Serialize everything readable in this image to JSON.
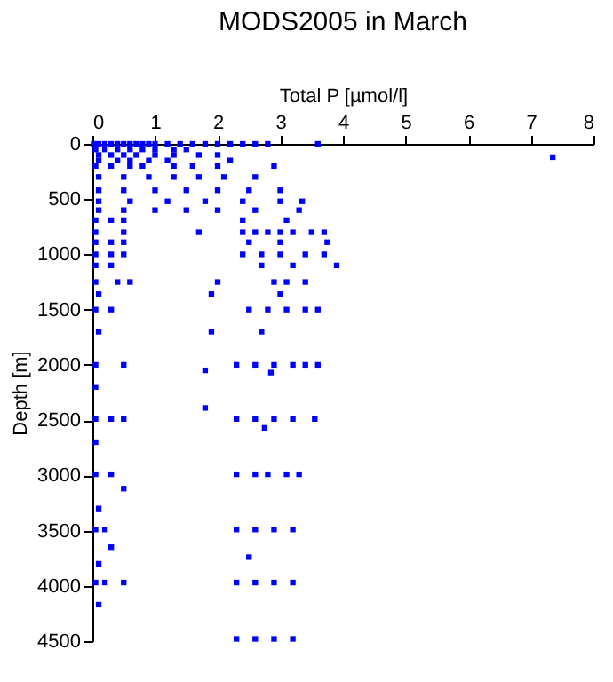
{
  "chart_data": {
    "type": "scatter",
    "title": "MODS2005 in March",
    "xlabel": "Total P [µmol/l]",
    "ylabel": "Depth [m]",
    "xlim": [
      0,
      8
    ],
    "xticks": [
      0,
      1,
      2,
      3,
      4,
      5,
      6,
      7,
      8
    ],
    "ylim": [
      4500,
      0
    ],
    "yticks": [
      0,
      500,
      1000,
      1500,
      2000,
      2500,
      3000,
      3500,
      4000,
      4500
    ],
    "grid": false,
    "legend": false,
    "marker": "square",
    "series": [
      {
        "color": "#0000ff",
        "x": [
          0.02,
          0.1,
          0.2,
          0.3,
          0.4,
          0.5,
          0.6,
          0.7,
          0.8,
          0.9,
          1.0,
          1.2,
          1.4,
          1.6,
          1.8,
          2.0,
          2.2,
          2.4,
          2.6,
          2.8,
          3.6,
          0.05,
          0.2,
          0.4,
          0.6,
          0.8,
          1.0,
          1.3,
          1.5,
          0.1,
          0.3,
          0.5,
          0.7,
          1.0,
          1.3,
          1.7,
          2.0,
          7.35,
          0.1,
          0.4,
          0.6,
          0.9,
          1.2,
          2.2,
          0.05,
          0.3,
          0.6,
          0.8,
          1.3,
          1.6,
          2.0,
          2.9,
          0.1,
          0.5,
          0.9,
          1.3,
          1.7,
          2.1,
          2.6,
          0.1,
          0.5,
          1.0,
          1.5,
          2.0,
          2.5,
          3.0,
          0.1,
          0.6,
          1.2,
          1.8,
          2.4,
          3.0,
          3.35,
          0.1,
          0.5,
          1.0,
          1.5,
          2.0,
          2.6,
          3.3,
          0.05,
          0.3,
          0.5,
          2.4,
          3.1,
          0.05,
          0.5,
          1.7,
          2.4,
          2.6,
          2.8,
          3.0,
          3.2,
          3.5,
          3.7,
          0.05,
          0.3,
          0.5,
          2.5,
          3.0,
          3.75,
          0.05,
          0.3,
          0.5,
          2.4,
          2.7,
          3.0,
          3.4,
          3.7,
          0.05,
          0.3,
          2.7,
          3.2,
          3.9,
          0.05,
          0.4,
          0.6,
          2.0,
          2.9,
          3.1,
          3.4,
          0.1,
          1.9,
          3.0,
          0.05,
          0.3,
          2.5,
          2.8,
          3.1,
          3.4,
          3.6,
          0.1,
          1.9,
          2.7,
          0.05,
          0.5,
          2.3,
          2.6,
          2.9,
          3.2,
          3.4,
          3.6,
          2.85,
          1.8,
          1.8,
          0.05,
          0.05,
          0.3,
          0.5,
          2.3,
          2.6,
          2.9,
          3.2,
          3.55,
          2.75,
          0.05,
          0.05,
          0.3,
          2.3,
          2.6,
          2.8,
          3.1,
          3.3,
          0.5,
          0.1,
          0.05,
          0.2,
          2.3,
          2.6,
          2.9,
          3.2,
          0.3,
          2.5,
          0.1,
          0.05,
          0.2,
          0.5,
          2.3,
          2.6,
          2.9,
          3.2,
          0.1,
          2.3,
          2.6,
          2.9,
          3.2
        ],
        "values": [
          0,
          0,
          0,
          0,
          0,
          0,
          0,
          0,
          0,
          0,
          0,
          0,
          0,
          0,
          0,
          0,
          0,
          0,
          0,
          0,
          0,
          50,
          50,
          50,
          50,
          50,
          50,
          50,
          50,
          100,
          100,
          100,
          100,
          100,
          100,
          100,
          100,
          120,
          150,
          150,
          150,
          150,
          150,
          150,
          200,
          200,
          200,
          200,
          200,
          200,
          200,
          200,
          300,
          300,
          300,
          300,
          300,
          300,
          300,
          420,
          420,
          420,
          420,
          420,
          420,
          420,
          520,
          520,
          520,
          520,
          520,
          520,
          520,
          600,
          600,
          600,
          600,
          600,
          600,
          600,
          690,
          690,
          690,
          690,
          690,
          800,
          800,
          800,
          800,
          800,
          800,
          800,
          800,
          800,
          800,
          890,
          890,
          890,
          890,
          890,
          890,
          1000,
          1000,
          1000,
          1000,
          1000,
          1000,
          1000,
          1000,
          1100,
          1100,
          1100,
          1100,
          1100,
          1250,
          1250,
          1250,
          1250,
          1250,
          1250,
          1250,
          1360,
          1360,
          1360,
          1500,
          1500,
          1500,
          1500,
          1500,
          1500,
          1500,
          1700,
          1700,
          1700,
          2000,
          2000,
          2000,
          2000,
          2000,
          2000,
          2000,
          2000,
          2070,
          2050,
          2390,
          2200,
          2490,
          2490,
          2490,
          2490,
          2490,
          2490,
          2490,
          2490,
          2570,
          2700,
          2990,
          2990,
          2990,
          2990,
          2990,
          2990,
          2990,
          3120,
          3300,
          3490,
          3490,
          3490,
          3490,
          3490,
          3490,
          3650,
          3740,
          3800,
          3970,
          3970,
          3970,
          3970,
          3970,
          3970,
          3970,
          4170,
          4480,
          4480,
          4480,
          4480
        ]
      }
    ]
  }
}
